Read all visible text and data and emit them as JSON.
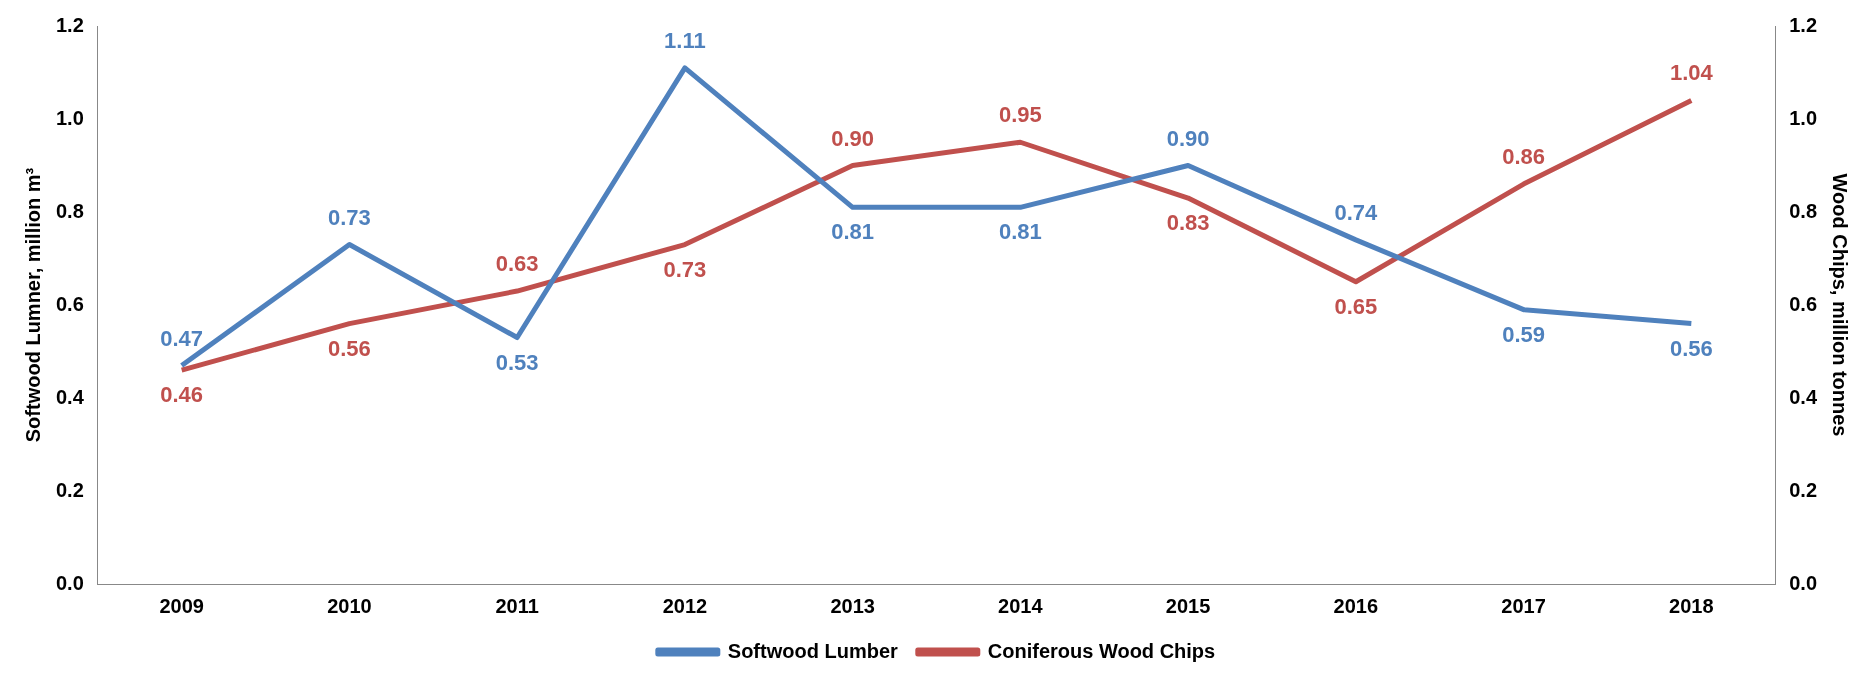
{
  "chart_data": {
    "type": "line",
    "categories": [
      "2009",
      "2010",
      "2011",
      "2012",
      "2013",
      "2014",
      "2015",
      "2016",
      "2017",
      "2018"
    ],
    "series": [
      {
        "name": "Softwood Lumber",
        "color": "#4f81bd",
        "values": [
          0.47,
          0.73,
          0.53,
          1.11,
          0.81,
          0.81,
          0.9,
          0.74,
          0.59,
          0.56
        ],
        "value_labels": [
          "0.47",
          "0.73",
          "0.53",
          "1.11",
          "0.81",
          "0.81",
          "0.90",
          "0.74",
          "0.59",
          "0.56"
        ]
      },
      {
        "name": "Coniferous Wood Chips",
        "color": "#c0504d",
        "axis": "y2",
        "values": [
          0.46,
          0.56,
          0.63,
          0.73,
          0.9,
          0.95,
          0.83,
          0.65,
          0.86,
          1.04
        ],
        "value_labels": [
          "0.46",
          "0.56",
          "0.63",
          "0.73",
          "0.90",
          "0.95",
          "0.83",
          "0.65",
          "0.86",
          "1.04"
        ]
      }
    ],
    "ylabel": "Softwood Lumner, million m³",
    "y2label": "Wood Chips, million tonnes",
    "ylim": [
      0,
      1.2
    ],
    "yticks": [
      {
        "value": 0,
        "label": "0.0"
      },
      {
        "value": 0.2,
        "label": "0.2"
      },
      {
        "value": 0.4,
        "label": "0.4"
      },
      {
        "value": 0.6,
        "label": "0.6"
      },
      {
        "value": 0.8,
        "label": "0.8"
      },
      {
        "value": 1,
        "label": "1.0"
      },
      {
        "value": 1.2,
        "label": "1.2"
      }
    ],
    "y2lim": [
      0,
      1.2
    ],
    "y2ticks": [
      {
        "value": 0,
        "label": "0.0"
      },
      {
        "value": 0.2,
        "label": "0.2"
      },
      {
        "value": 0.4,
        "label": "0.4"
      },
      {
        "value": 0.6,
        "label": "0.6"
      },
      {
        "value": 0.8,
        "label": "0.8"
      },
      {
        "value": 1,
        "label": "1.0"
      },
      {
        "value": 1.2,
        "label": "1.2"
      }
    ],
    "legend": "bottom",
    "grid": false,
    "marker": "none",
    "line_style": "solid"
  }
}
